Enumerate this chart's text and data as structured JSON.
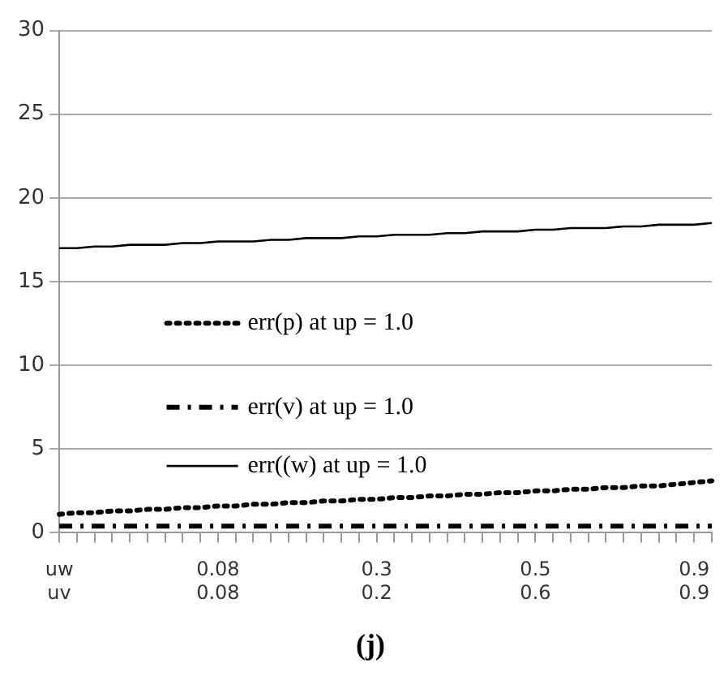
{
  "chart_data": {
    "type": "line",
    "categories": [
      "uw\nuv",
      null,
      null,
      null,
      null,
      null,
      null,
      null,
      null,
      "0.08\n0.08",
      null,
      null,
      null,
      null,
      null,
      null,
      null,
      null,
      "0.3\n0.2",
      null,
      null,
      null,
      null,
      null,
      null,
      null,
      null,
      "0.5\n0.6",
      null,
      null,
      null,
      null,
      null,
      null,
      null,
      null,
      "0.9\n0.9",
      null
    ],
    "series": [
      {
        "name": "err(p) at up = 1.0",
        "color": "#000000",
        "line_style": "dotted",
        "values": [
          1.1,
          1.2,
          1.2,
          1.3,
          1.3,
          1.4,
          1.4,
          1.5,
          1.5,
          1.6,
          1.6,
          1.7,
          1.7,
          1.8,
          1.8,
          1.9,
          1.9,
          2.0,
          2.0,
          2.1,
          2.1,
          2.2,
          2.2,
          2.3,
          2.3,
          2.4,
          2.4,
          2.5,
          2.5,
          2.6,
          2.6,
          2.7,
          2.7,
          2.8,
          2.8,
          2.9,
          3.0,
          3.1
        ]
      },
      {
        "name": "err(v) at up = 1.0",
        "color": "#000000",
        "line_style": "dashed",
        "values": [
          0.4,
          0.4,
          0.4,
          0.4,
          0.4,
          0.4,
          0.4,
          0.4,
          0.4,
          0.4,
          0.4,
          0.4,
          0.4,
          0.4,
          0.4,
          0.4,
          0.4,
          0.4,
          0.4,
          0.4,
          0.4,
          0.4,
          0.4,
          0.4,
          0.4,
          0.4,
          0.4,
          0.4,
          0.4,
          0.4,
          0.4,
          0.4,
          0.4,
          0.4,
          0.4,
          0.4,
          0.4,
          0.4
        ]
      },
      {
        "name": "err((w) at up = 1.0",
        "color": "#000000",
        "line_style": "solid",
        "values": [
          17.0,
          17.0,
          17.1,
          17.1,
          17.2,
          17.2,
          17.2,
          17.3,
          17.3,
          17.4,
          17.4,
          17.4,
          17.5,
          17.5,
          17.6,
          17.6,
          17.6,
          17.7,
          17.7,
          17.8,
          17.8,
          17.8,
          17.9,
          17.9,
          18.0,
          18.0,
          18.0,
          18.1,
          18.1,
          18.2,
          18.2,
          18.2,
          18.3,
          18.3,
          18.4,
          18.4,
          18.4,
          18.5
        ]
      }
    ],
    "ylim": [
      0,
      30
    ],
    "yticks": [
      0,
      5,
      10,
      15,
      20,
      25,
      30
    ],
    "grid": "y",
    "legend": "center",
    "marker": "none",
    "annotations": [
      "(j)"
    ]
  }
}
